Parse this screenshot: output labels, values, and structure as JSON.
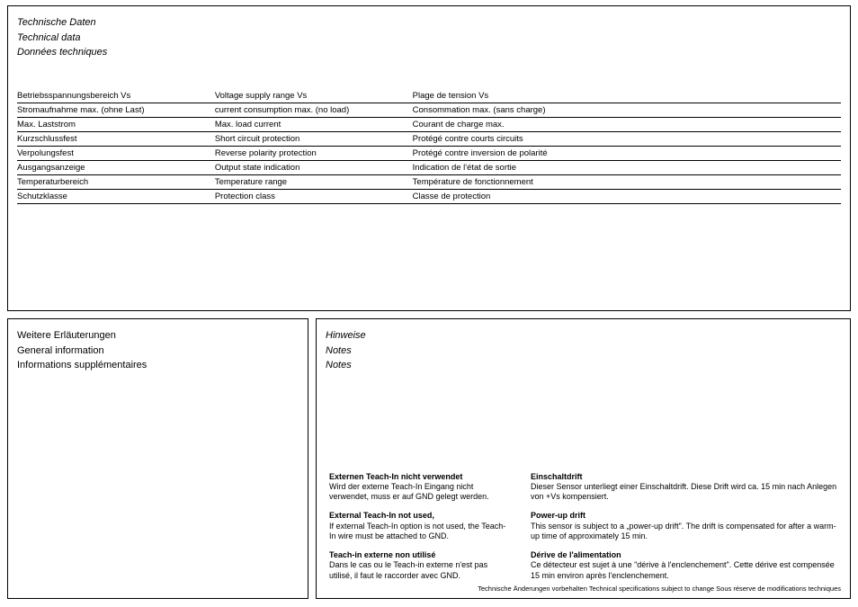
{
  "top": {
    "headings": {
      "de": "Technische Daten",
      "en": "Technical data",
      "fr": "Données techniques"
    },
    "rows": [
      {
        "de": "Betriebsspannungsbereich Vs",
        "en": "Voltage supply range Vs",
        "fr": "Plage de tension Vs"
      },
      {
        "de": "Stromaufnahme max. (ohne Last)",
        "en": "current consumption max. (no load)",
        "fr": "Consommation max. (sans charge)"
      },
      {
        "de": "Max. Laststrom",
        "en": "Max. load current",
        "fr": "Courant de charge max."
      },
      {
        "de": "Kurzschlussfest",
        "en": "Short circuit protection",
        "fr": "Protégé contre courts circuits"
      },
      {
        "de": "Verpolungsfest",
        "en": "Reverse polarity protection",
        "fr": "Protégé contre inversion de polarité"
      },
      {
        "de": "Ausgangsanzeige",
        "en": "Output state indication",
        "fr": "Indication de l'état de sortie"
      },
      {
        "de": "Temperaturbereich",
        "en": "Temperature range",
        "fr": "Température de fonctionnement"
      },
      {
        "de": "Schutzklasse",
        "en": "Protection class",
        "fr": "Classe de protection"
      }
    ]
  },
  "bottomLeft": {
    "headings": {
      "de": "Weitere Erläuterungen",
      "en": "General information",
      "fr": "Informations supplémentaires"
    }
  },
  "bottomRight": {
    "headings": {
      "de": "Hinweise",
      "en": "Notes",
      "fr": "Notes"
    },
    "colA": [
      {
        "title": "Externen Teach-In nicht verwendet",
        "body": "Wird der externe Teach-In Eingang nicht verwendet, muss er auf GND gelegt werden."
      },
      {
        "title": "External Teach-In not used,",
        "body": "If external Teach-In option is not used, the Teach-In wire must be attached to GND."
      },
      {
        "title": "Teach-in externe non utilisé",
        "body": "Dans le cas ou le Teach-in externe n'est pas utilisé, il faut le raccorder avec GND."
      }
    ],
    "colB": [
      {
        "title": "Einschaltdrift",
        "body": "Dieser Sensor unterliegt einer Einschaltdrift. Diese Drift wird ca. 15 min nach Anlegen von +Vs kompensiert."
      },
      {
        "title": "Power-up drift",
        "body": "This sensor is subject to a „power-up drift\". The drift is compensated for after a warm-up time of approximately 15 min."
      },
      {
        "title": "Dérive de l'alimentation",
        "body": "Ce détecteur  est sujet à une \"dérive à l'enclenchement\". Cette dérive est compensée 15 min environ après l'enclenchement."
      }
    ],
    "footer": "Technische Änderungen vorbehalten   Technical specifications subject to change   Sous réserve de modifications techniques"
  }
}
